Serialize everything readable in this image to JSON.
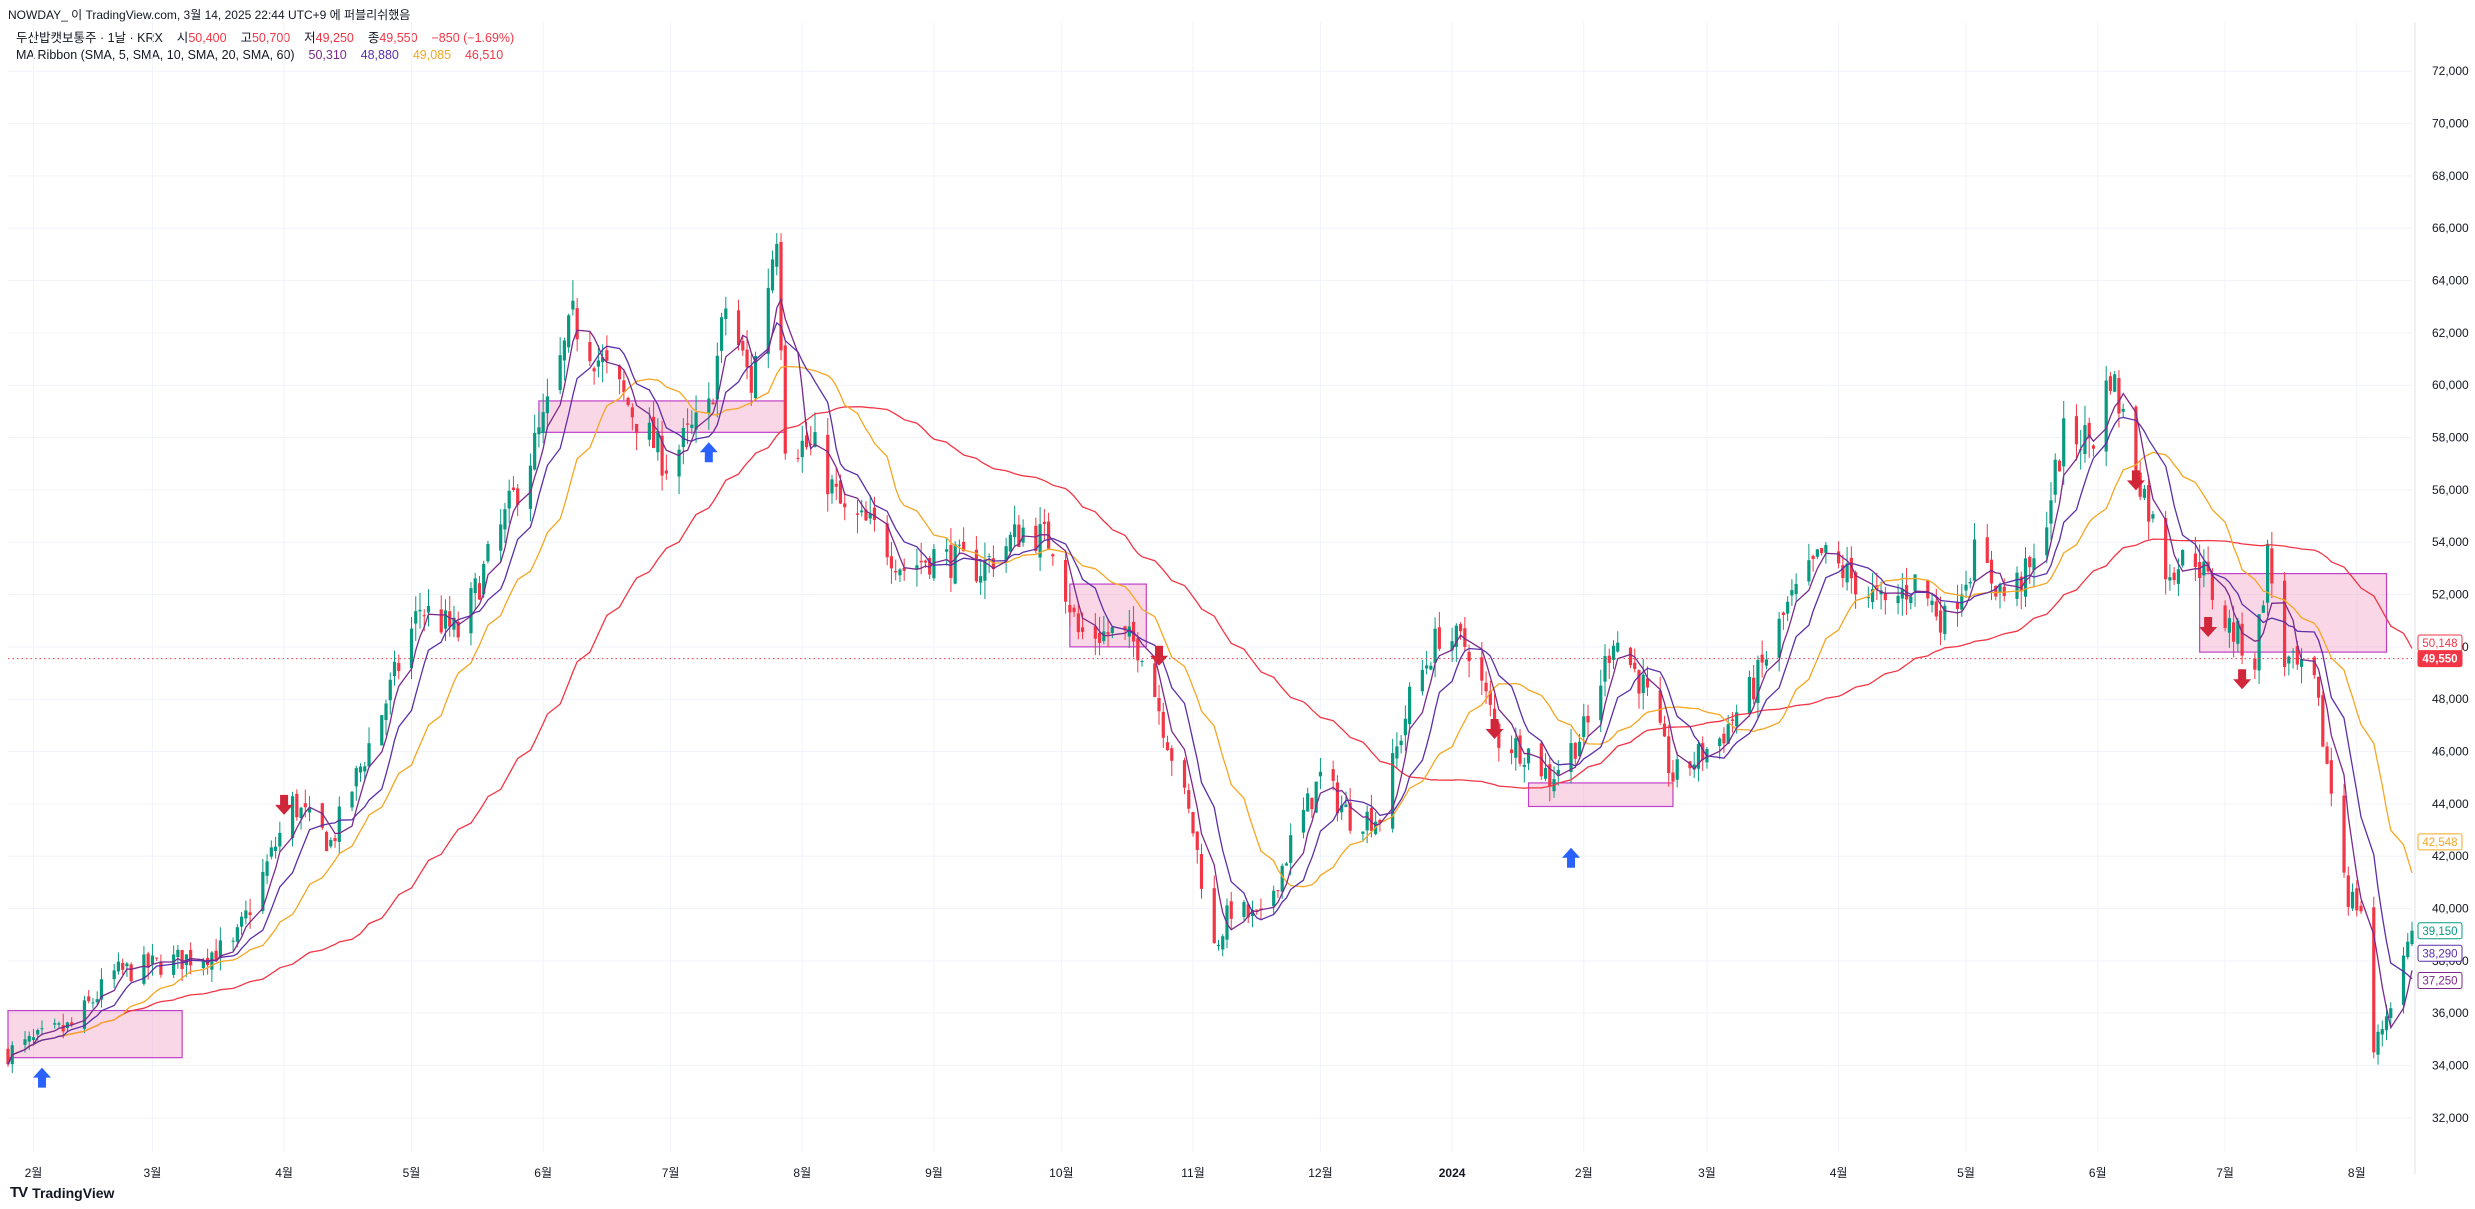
{
  "header": {
    "caption": "NOWDAY_ 이 TradingView.com, 3월 14, 2025 22:44 UTC+9 에 퍼블리쉬했음"
  },
  "legend": {
    "symbol": "두산밥캣보통주 · 1날 · KRX",
    "o_label": "시",
    "o_value": "50,400",
    "h_label": "고",
    "h_value": "50,700",
    "l_label": "저",
    "l_value": "49,250",
    "c_label": "종",
    "c_value": "49,550",
    "change": "−850 (−1.69%)",
    "ma_title": "MA Ribbon (SMA, 5, SMA, 10, SMA, 20, SMA, 60)",
    "ma_values": [
      "50,310",
      "48,880",
      "49,085",
      "46,510"
    ]
  },
  "brand": {
    "logo": "TV",
    "name": "TradingView"
  },
  "colors": {
    "up": "#089981",
    "down": "#f23645",
    "ma5": "#7b2a8c",
    "ma10": "#5b2fa8",
    "ma20": "#f5a623",
    "ma60": "#f23645",
    "zone_fill": "rgba(240,140,185,0.35)",
    "zone_stroke": "#c040c8",
    "arrow_up": "#2962ff",
    "arrow_down": "#d0263a"
  },
  "chart_data": {
    "type": "candlestick",
    "title": "두산밥캣보통주 · 1날 · KRX",
    "y_ticks": [
      32000,
      34000,
      36000,
      38000,
      40000,
      42000,
      44000,
      46000,
      48000,
      50000,
      52000,
      54000,
      56000,
      58000,
      60000,
      62000,
      64000,
      66000,
      68000,
      70000,
      72000
    ],
    "y_tick_labels": [
      "32,000",
      "34,000",
      "36,000",
      "38,000",
      "40,000",
      "42,000",
      "44,000",
      "46,000",
      "48,000",
      "50,000",
      "52,000",
      "54,000",
      "56,000",
      "58,000",
      "60,000",
      "62,000",
      "64,000",
      "66,000",
      "68,000",
      "70,000",
      "72,000"
    ],
    "ylim": [
      31000,
      73500
    ],
    "x_range": [
      "2023-01-26",
      "2024-08-14"
    ],
    "x_ticks": [
      {
        "date": "2023-02-01",
        "label": "2월"
      },
      {
        "date": "2023-03-01",
        "label": "3월"
      },
      {
        "date": "2023-04-01",
        "label": "4월"
      },
      {
        "date": "2023-05-01",
        "label": "5월"
      },
      {
        "date": "2023-06-01",
        "label": "6월"
      },
      {
        "date": "2023-07-01",
        "label": "7월"
      },
      {
        "date": "2023-08-01",
        "label": "8월"
      },
      {
        "date": "2023-09-01",
        "label": "9월"
      },
      {
        "date": "2023-10-01",
        "label": "10월"
      },
      {
        "date": "2023-11-01",
        "label": "11월"
      },
      {
        "date": "2023-12-01",
        "label": "12월"
      },
      {
        "date": "2024-01-01",
        "label": "2024"
      },
      {
        "date": "2024-02-01",
        "label": "2월"
      },
      {
        "date": "2024-03-01",
        "label": "3월"
      },
      {
        "date": "2024-04-01",
        "label": "4월"
      },
      {
        "date": "2024-05-01",
        "label": "5월"
      },
      {
        "date": "2024-06-01",
        "label": "6월"
      },
      {
        "date": "2024-07-01",
        "label": "7월"
      },
      {
        "date": "2024-08-01",
        "label": "8월"
      }
    ],
    "close_path": [
      {
        "date": "2023-01-26",
        "price": 34500
      },
      {
        "date": "2023-02-10",
        "price": 35500
      },
      {
        "date": "2023-02-20",
        "price": 37500
      },
      {
        "date": "2023-03-06",
        "price": 38000
      },
      {
        "date": "2023-03-20",
        "price": 38500
      },
      {
        "date": "2023-04-03",
        "price": 44000
      },
      {
        "date": "2023-04-12",
        "price": 42500
      },
      {
        "date": "2023-04-24",
        "price": 47500
      },
      {
        "date": "2023-05-03",
        "price": 51500
      },
      {
        "date": "2023-05-12",
        "price": 50500
      },
      {
        "date": "2023-05-22",
        "price": 54500
      },
      {
        "date": "2023-06-01",
        "price": 58500
      },
      {
        "date": "2023-06-08",
        "price": 62500
      },
      {
        "date": "2023-06-20",
        "price": 59500
      },
      {
        "date": "2023-06-30",
        "price": 57000
      },
      {
        "date": "2023-07-10",
        "price": 59000
      },
      {
        "date": "2023-07-14",
        "price": 63000
      },
      {
        "date": "2023-07-20",
        "price": 60000
      },
      {
        "date": "2023-07-26",
        "price": 66000
      },
      {
        "date": "2023-07-28",
        "price": 58000
      },
      {
        "date": "2023-08-04",
        "price": 57500
      },
      {
        "date": "2023-08-11",
        "price": 55000
      },
      {
        "date": "2023-08-18",
        "price": 54500
      },
      {
        "date": "2023-08-25",
        "price": 53000
      },
      {
        "date": "2023-09-01",
        "price": 53500
      },
      {
        "date": "2023-09-12",
        "price": 53000
      },
      {
        "date": "2023-09-22",
        "price": 54500
      },
      {
        "date": "2023-09-29",
        "price": 54000
      },
      {
        "date": "2023-10-05",
        "price": 50500
      },
      {
        "date": "2023-10-13",
        "price": 50500
      },
      {
        "date": "2023-10-20",
        "price": 50000
      },
      {
        "date": "2023-10-26",
        "price": 46500
      },
      {
        "date": "2023-11-01",
        "price": 43000
      },
      {
        "date": "2023-11-06",
        "price": 38500
      },
      {
        "date": "2023-11-10",
        "price": 40000
      },
      {
        "date": "2023-11-17",
        "price": 39500
      },
      {
        "date": "2023-11-24",
        "price": 42500
      },
      {
        "date": "2023-12-01",
        "price": 45000
      },
      {
        "date": "2023-12-08",
        "price": 43500
      },
      {
        "date": "2023-12-15",
        "price": 43500
      },
      {
        "date": "2023-12-22",
        "price": 48000
      },
      {
        "date": "2023-12-29",
        "price": 50500
      },
      {
        "date": "2024-01-05",
        "price": 50000
      },
      {
        "date": "2024-01-12",
        "price": 46500
      },
      {
        "date": "2024-01-19",
        "price": 46000
      },
      {
        "date": "2024-01-24",
        "price": 45000
      },
      {
        "date": "2024-02-02",
        "price": 47000
      },
      {
        "date": "2024-02-08",
        "price": 50500
      },
      {
        "date": "2024-02-15",
        "price": 48500
      },
      {
        "date": "2024-02-22",
        "price": 45000
      },
      {
        "date": "2024-03-04",
        "price": 46500
      },
      {
        "date": "2024-03-12",
        "price": 48500
      },
      {
        "date": "2024-03-20",
        "price": 51500
      },
      {
        "date": "2024-03-28",
        "price": 53500
      },
      {
        "date": "2024-04-05",
        "price": 52500
      },
      {
        "date": "2024-04-12",
        "price": 51500
      },
      {
        "date": "2024-04-19",
        "price": 52500
      },
      {
        "date": "2024-04-26",
        "price": 51000
      },
      {
        "date": "2024-05-03",
        "price": 53500
      },
      {
        "date": "2024-05-10",
        "price": 52000
      },
      {
        "date": "2024-05-17",
        "price": 53000
      },
      {
        "date": "2024-05-24",
        "price": 58000
      },
      {
        "date": "2024-05-31",
        "price": 58000
      },
      {
        "date": "2024-06-04",
        "price": 60500
      },
      {
        "date": "2024-06-10",
        "price": 57000
      },
      {
        "date": "2024-06-17",
        "price": 53000
      },
      {
        "date": "2024-06-24",
        "price": 53500
      },
      {
        "date": "2024-07-01",
        "price": 51000
      },
      {
        "date": "2024-07-08",
        "price": 49500
      },
      {
        "date": "2024-07-11",
        "price": 53500
      },
      {
        "date": "2024-07-15",
        "price": 49500
      },
      {
        "date": "2024-07-22",
        "price": 48500
      },
      {
        "date": "2024-07-26",
        "price": 44500
      },
      {
        "date": "2024-07-30",
        "price": 40500
      },
      {
        "date": "2024-08-02",
        "price": 40000
      },
      {
        "date": "2024-08-05",
        "price": 34500
      },
      {
        "date": "2024-08-09",
        "price": 36500
      },
      {
        "date": "2024-08-14",
        "price": 39150
      }
    ],
    "ma_ribbon": [
      {
        "name": "SMA 5",
        "period": 5,
        "last": "50,310",
        "color": "#7b2a8c"
      },
      {
        "name": "SMA 10",
        "period": 10,
        "last": "48,880",
        "color": "#5b2fa8"
      },
      {
        "name": "SMA 20",
        "period": 20,
        "last": "49,085",
        "color": "#f5a623"
      },
      {
        "name": "SMA 60",
        "period": 60,
        "last": "46,510",
        "color": "#f23645"
      }
    ],
    "price_tags": [
      {
        "value": 50148,
        "label": "50,148",
        "style": "outline",
        "color": "#f23645"
      },
      {
        "value": 49550,
        "label": "49,550",
        "style": "filled",
        "color": "#f23645"
      },
      {
        "value": 42548,
        "label": "42,548",
        "style": "outline",
        "color": "#f5a623"
      },
      {
        "value": 39150,
        "label": "39,150",
        "style": "outline",
        "color": "#089981"
      },
      {
        "value": 38290,
        "label": "38,290",
        "style": "outline",
        "color": "#5b2fa8"
      },
      {
        "value": 37250,
        "label": "37,250",
        "style": "outline",
        "color": "#7b2a8c"
      }
    ],
    "current_price_line": 49550,
    "zones": [
      {
        "from": "2023-01-26",
        "to": "2023-03-08",
        "low": 34300,
        "high": 36100
      },
      {
        "from": "2023-05-31",
        "to": "2023-07-28",
        "low": 58200,
        "high": 59400
      },
      {
        "from": "2023-10-03",
        "to": "2023-10-21",
        "low": 50000,
        "high": 52400
      },
      {
        "from": "2024-01-19",
        "to": "2024-02-22",
        "low": 43900,
        "high": 44800
      },
      {
        "from": "2024-06-25",
        "to": "2024-08-08",
        "low": 49800,
        "high": 52800
      }
    ],
    "signals": [
      {
        "date": "2023-02-03",
        "price": 33500,
        "dir": "up"
      },
      {
        "date": "2023-04-01",
        "price": 44000,
        "dir": "down"
      },
      {
        "date": "2023-07-10",
        "price": 57400,
        "dir": "up"
      },
      {
        "date": "2023-10-24",
        "price": 49700,
        "dir": "down"
      },
      {
        "date": "2024-01-11",
        "price": 46900,
        "dir": "down"
      },
      {
        "date": "2024-01-29",
        "price": 41900,
        "dir": "up"
      },
      {
        "date": "2024-06-10",
        "price": 56400,
        "dir": "down"
      },
      {
        "date": "2024-06-27",
        "price": 50800,
        "dir": "down"
      },
      {
        "date": "2024-07-05",
        "price": 48800,
        "dir": "down"
      }
    ]
  }
}
